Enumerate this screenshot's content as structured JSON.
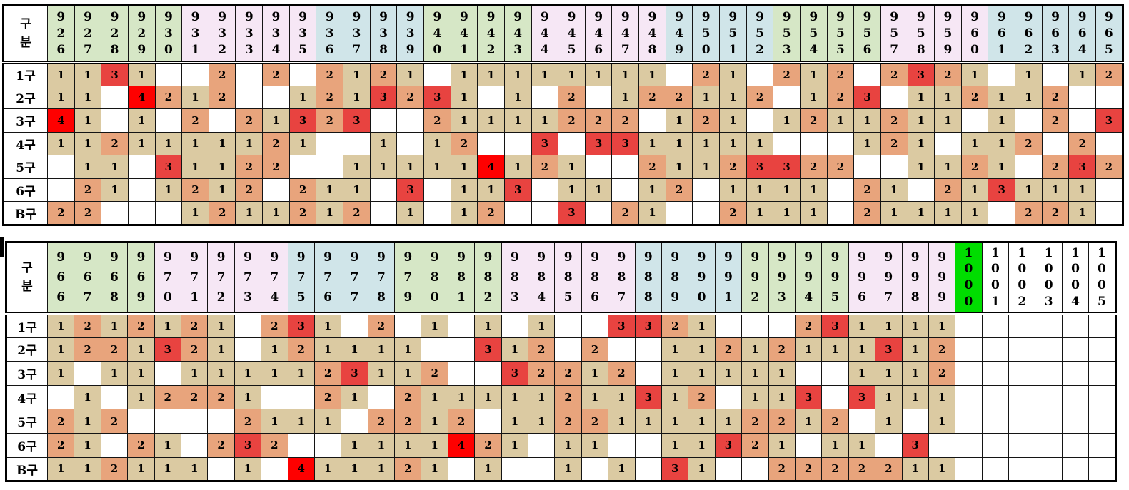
{
  "colors": {
    "count_1_bg": "#dbcaa2",
    "count_2_bg": "#e8a47c",
    "count_3_bg": "#e84340",
    "count_4_bg": "#fe0000",
    "month_green": "#d6e7c6",
    "month_pink": "#f6e7f5",
    "month_blue": "#d0e5e9",
    "round_1000_green": "#00dd00",
    "grid_line": "#141414",
    "text": "#000000"
  },
  "tables": [
    {
      "name": "rounds-926-965",
      "corner_lines": [
        "구",
        "분"
      ],
      "columns": {
        "labels": [
          "926",
          "927",
          "928",
          "929",
          "930",
          "931",
          "932",
          "933",
          "934",
          "935",
          "936",
          "937",
          "938",
          "939",
          "940",
          "941",
          "942",
          "943",
          "944",
          "945",
          "946",
          "947",
          "948",
          "949",
          "950",
          "951",
          "952",
          "953",
          "954",
          "955",
          "956",
          "957",
          "958",
          "959",
          "960",
          "961",
          "962",
          "963",
          "964",
          "965"
        ],
        "colors": [
          "green",
          "green",
          "green",
          "green",
          "green",
          "pink",
          "pink",
          "pink",
          "pink",
          "pink",
          "blue",
          "blue",
          "blue",
          "blue",
          "green",
          "green",
          "green",
          "green",
          "pink",
          "pink",
          "pink",
          "pink",
          "pink",
          "blue",
          "blue",
          "blue",
          "blue",
          "green",
          "green",
          "green",
          "green",
          "pink",
          "pink",
          "pink",
          "pink",
          "blue",
          "blue",
          "blue",
          "blue",
          "blue"
        ]
      },
      "rows": [
        {
          "label": "1구",
          "cells": [
            "1",
            "1",
            "3",
            "1",
            "",
            "",
            "2",
            "",
            "2",
            "",
            "2",
            "1",
            "2",
            "1",
            "",
            "1",
            "1",
            "1",
            "1",
            "1",
            "1",
            "1",
            "1",
            "",
            "2",
            "1",
            "",
            "2",
            "1",
            "2",
            "",
            "2",
            "3",
            "2",
            "1",
            "",
            "1",
            "",
            "1",
            "2"
          ]
        },
        {
          "label": "2구",
          "cells": [
            "1",
            "1",
            "",
            "4",
            "2",
            "1",
            "2",
            "",
            "",
            "1",
            "2",
            "1",
            "3",
            "2",
            "3",
            "1",
            "",
            "1",
            "",
            "2",
            "",
            "1",
            "2",
            "2",
            "1",
            "1",
            "2",
            "",
            "1",
            "2",
            "3",
            "",
            "1",
            "1",
            "2",
            "1",
            "1",
            "2",
            "",
            ""
          ]
        },
        {
          "label": "3구",
          "cells": [
            "4",
            "1",
            "",
            "1",
            "",
            "2",
            "",
            "2",
            "1",
            "3",
            "2",
            "3",
            "",
            "",
            "2",
            "1",
            "1",
            "1",
            "1",
            "2",
            "2",
            "2",
            "",
            "1",
            "2",
            "1",
            "",
            "1",
            "2",
            "1",
            "1",
            "2",
            "1",
            "1",
            "",
            "1",
            "",
            "2",
            "",
            "3"
          ]
        },
        {
          "label": "4구",
          "cells": [
            "1",
            "1",
            "2",
            "1",
            "1",
            "1",
            "1",
            "1",
            "2",
            "1",
            "",
            "",
            "1",
            "",
            "1",
            "2",
            "",
            "",
            "3",
            "",
            "3",
            "3",
            "1",
            "1",
            "1",
            "1",
            "1",
            "",
            "",
            "",
            "1",
            "2",
            "1",
            "",
            "1",
            "1",
            "2",
            "",
            "2",
            ""
          ]
        },
        {
          "label": "5구",
          "cells": [
            "",
            "1",
            "1",
            "",
            "3",
            "1",
            "1",
            "2",
            "2",
            "",
            "",
            "1",
            "1",
            "1",
            "1",
            "1",
            "4",
            "1",
            "2",
            "1",
            "",
            "",
            "2",
            "1",
            "1",
            "2",
            "3",
            "3",
            "2",
            "2",
            "",
            "",
            "1",
            "1",
            "2",
            "1",
            "",
            "2",
            "3",
            "2"
          ]
        },
        {
          "label": "6구",
          "cells": [
            "",
            "2",
            "1",
            "",
            "1",
            "2",
            "1",
            "2",
            "",
            "2",
            "1",
            "1",
            "",
            "3",
            "",
            "1",
            "1",
            "3",
            "",
            "1",
            "1",
            "",
            "1",
            "2",
            "",
            "1",
            "1",
            "1",
            "1",
            "",
            "2",
            "1",
            "",
            "2",
            "1",
            "3",
            "1",
            "1",
            "1",
            ""
          ]
        },
        {
          "label": "B구",
          "cells": [
            "2",
            "2",
            "",
            "",
            "",
            "1",
            "2",
            "1",
            "1",
            "2",
            "1",
            "2",
            "",
            "1",
            "",
            "1",
            "2",
            "",
            "",
            "3",
            "",
            "2",
            "1",
            "",
            "",
            "2",
            "1",
            "1",
            "1",
            "",
            "2",
            "1",
            "1",
            "1",
            "1",
            "",
            "2",
            "2",
            "1",
            ""
          ]
        }
      ]
    },
    {
      "name": "rounds-966-1005",
      "corner_lines": [
        "구",
        "분"
      ],
      "columns": {
        "labels": [
          "966",
          "967",
          "968",
          "969",
          "970",
          "971",
          "972",
          "973",
          "974",
          "975",
          "976",
          "977",
          "978",
          "979",
          "980",
          "981",
          "982",
          "983",
          "984",
          "985",
          "986",
          "987",
          "988",
          "989",
          "990",
          "991",
          "992",
          "993",
          "994",
          "995",
          "996",
          "997",
          "998",
          "999",
          "1000",
          "1001",
          "1002",
          "1003",
          "1004",
          "1005"
        ],
        "colors": [
          "green",
          "green",
          "green",
          "green",
          "pink",
          "pink",
          "pink",
          "pink",
          "pink",
          "blue",
          "blue",
          "blue",
          "blue",
          "green",
          "green",
          "green",
          "green",
          "pink",
          "pink",
          "pink",
          "pink",
          "pink",
          "blue",
          "blue",
          "blue",
          "blue",
          "green",
          "green",
          "green",
          "green",
          "pink",
          "pink",
          "pink",
          "pink",
          "bright-green",
          "white",
          "white",
          "white",
          "white",
          "white"
        ]
      },
      "rows": [
        {
          "label": "1구",
          "cells": [
            "1",
            "2",
            "1",
            "2",
            "1",
            "2",
            "1",
            "",
            "2",
            "3",
            "1",
            "",
            "2",
            "",
            "1",
            "",
            "1",
            "",
            "1",
            "",
            "",
            "3",
            "3",
            "2",
            "1",
            "",
            "",
            "",
            "2",
            "3",
            "1",
            "1",
            "1",
            "1",
            "",
            "",
            "",
            "",
            "",
            ""
          ]
        },
        {
          "label": "2구",
          "cells": [
            "1",
            "2",
            "2",
            "1",
            "3",
            "2",
            "1",
            "",
            "1",
            "2",
            "1",
            "1",
            "1",
            "1",
            "",
            "",
            "3",
            "1",
            "2",
            "",
            "2",
            "",
            "",
            "1",
            "1",
            "2",
            "1",
            "2",
            "1",
            "1",
            "1",
            "3",
            "1",
            "2",
            "",
            "",
            "",
            "",
            "",
            ""
          ]
        },
        {
          "label": "3구",
          "cells": [
            "1",
            "",
            "1",
            "1",
            "",
            "1",
            "1",
            "1",
            "1",
            "1",
            "2",
            "3",
            "1",
            "1",
            "2",
            "",
            "",
            "3",
            "2",
            "2",
            "1",
            "2",
            "",
            "1",
            "1",
            "1",
            "1",
            "1",
            "",
            "",
            "1",
            "1",
            "1",
            "2",
            "",
            "",
            "",
            "",
            "",
            ""
          ]
        },
        {
          "label": "4구",
          "cells": [
            "",
            "1",
            "",
            "1",
            "2",
            "2",
            "2",
            "1",
            "",
            "",
            "2",
            "1",
            "",
            "2",
            "1",
            "1",
            "1",
            "1",
            "1",
            "2",
            "1",
            "1",
            "3",
            "1",
            "2",
            "",
            "1",
            "1",
            "3",
            "",
            "3",
            "1",
            "1",
            "1",
            "",
            "",
            "",
            "",
            "",
            ""
          ]
        },
        {
          "label": "5구",
          "cells": [
            "2",
            "1",
            "2",
            "",
            "",
            "",
            "",
            "2",
            "1",
            "1",
            "1",
            "",
            "2",
            "2",
            "1",
            "2",
            "",
            "1",
            "1",
            "2",
            "2",
            "1",
            "1",
            "1",
            "1",
            "1",
            "2",
            "2",
            "1",
            "2",
            "",
            "1",
            "",
            "1",
            "",
            "",
            "",
            "",
            "",
            ""
          ]
        },
        {
          "label": "6구",
          "cells": [
            "2",
            "1",
            "",
            "2",
            "1",
            "",
            "2",
            "3",
            "2",
            "",
            "",
            "1",
            "1",
            "1",
            "1",
            "4",
            "2",
            "1",
            "",
            "1",
            "1",
            "",
            "",
            "1",
            "1",
            "3",
            "2",
            "1",
            "",
            "1",
            "1",
            "",
            "3",
            "",
            "",
            "",
            "",
            "",
            "",
            ""
          ]
        },
        {
          "label": "B구",
          "cells": [
            "1",
            "1",
            "2",
            "1",
            "1",
            "1",
            "",
            "1",
            "",
            "4",
            "1",
            "1",
            "1",
            "2",
            "1",
            "",
            "1",
            "",
            "",
            "1",
            "",
            "1",
            "",
            "3",
            "1",
            "",
            "",
            "2",
            "2",
            "2",
            "2",
            "2",
            "1",
            "1",
            "",
            "",
            "",
            "",
            "",
            ""
          ]
        }
      ]
    }
  ]
}
